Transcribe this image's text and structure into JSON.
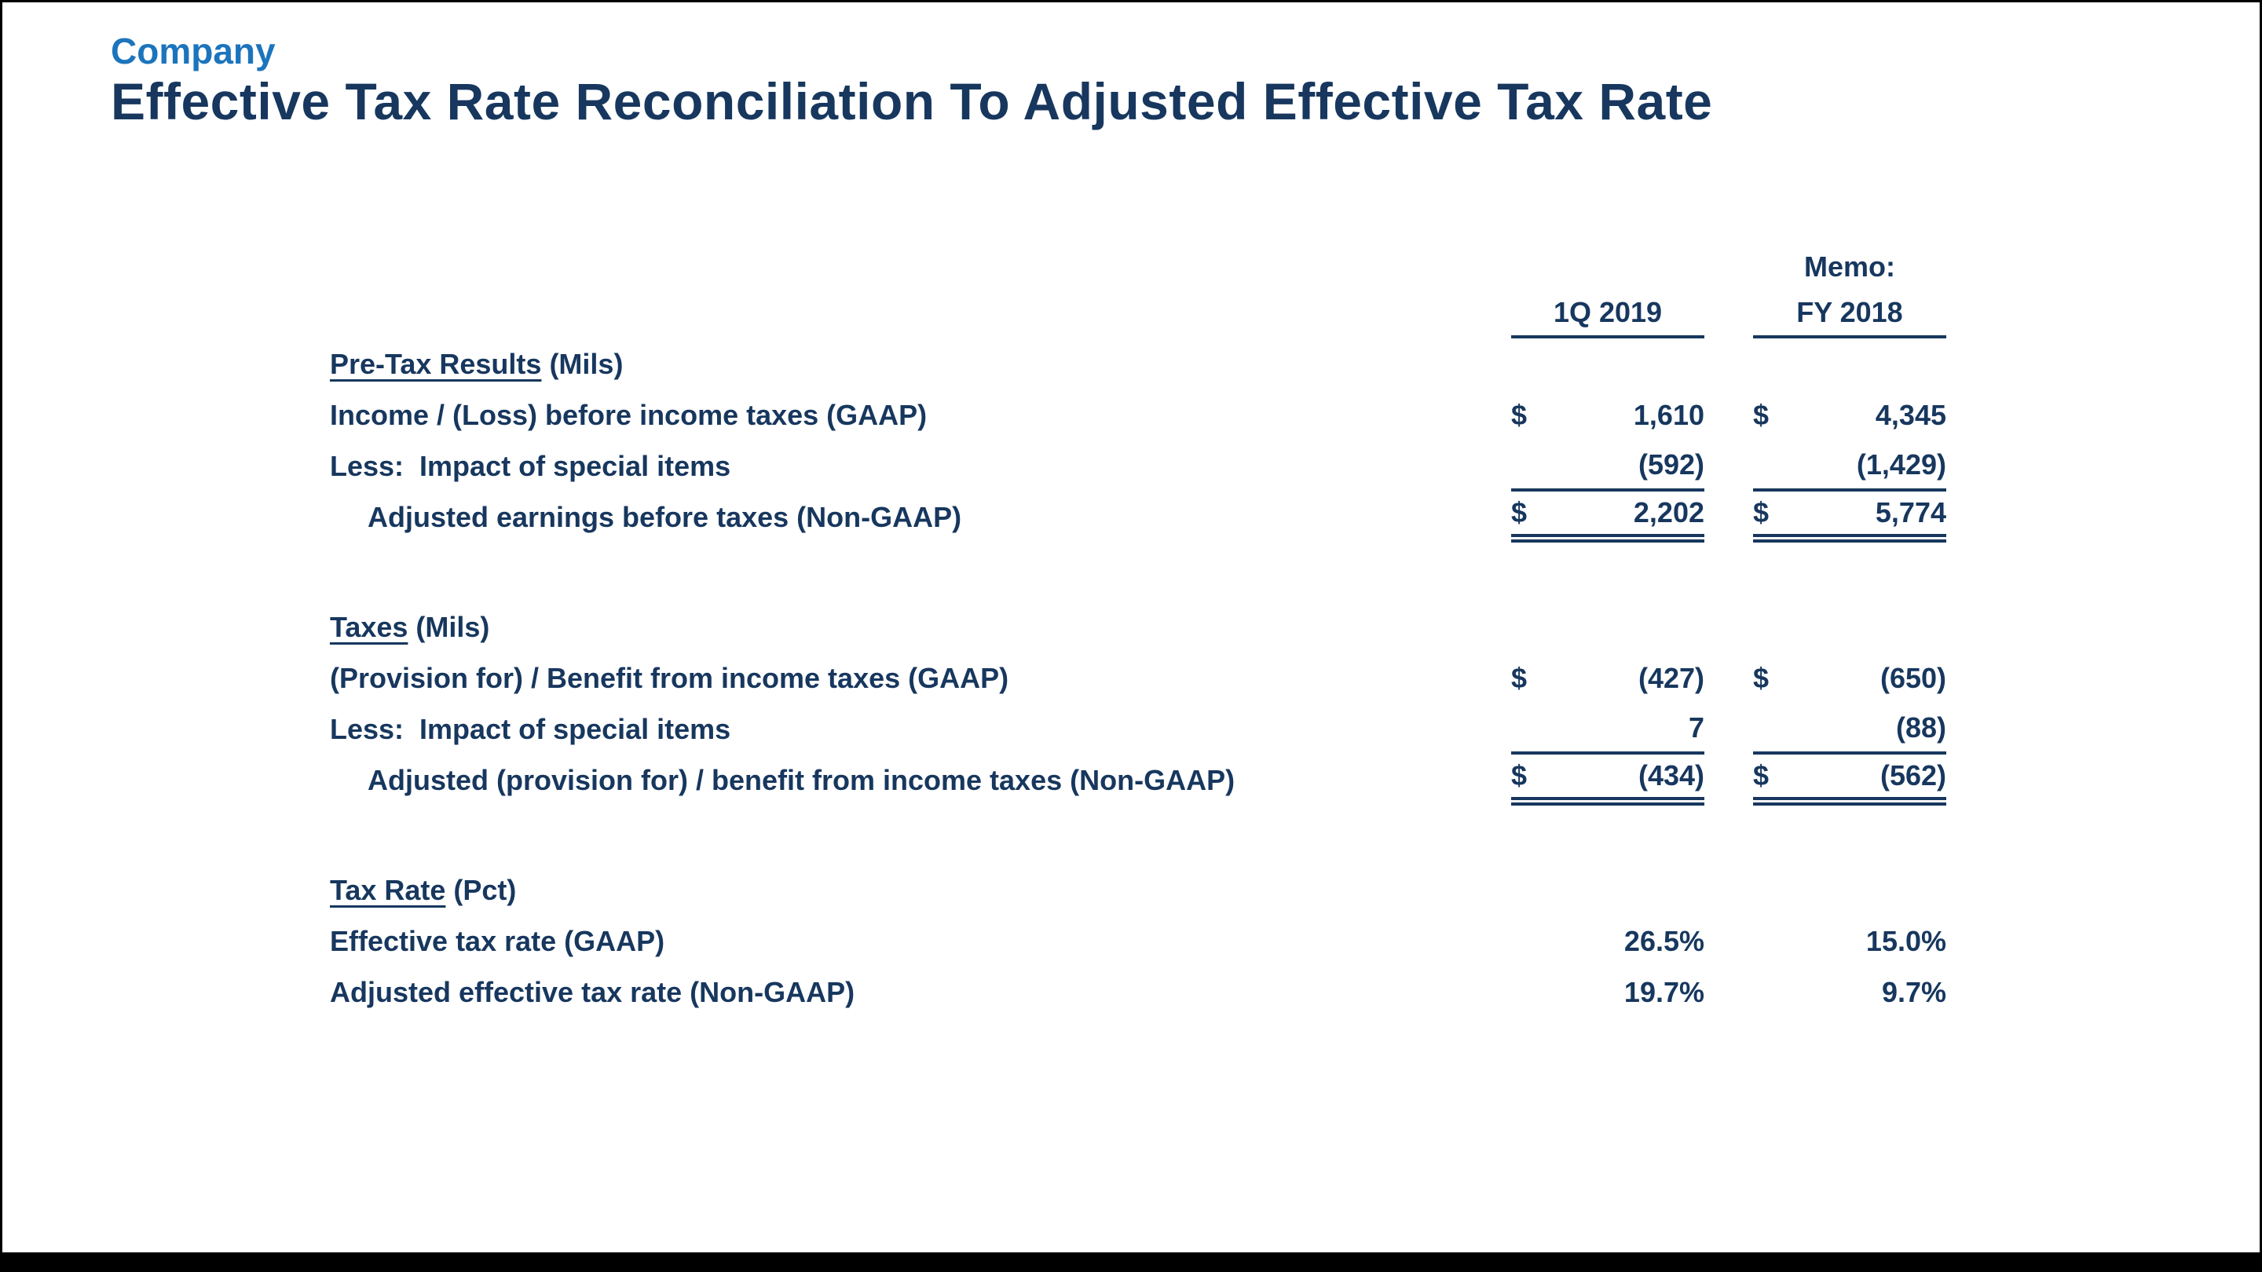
{
  "page": {
    "company": "Company",
    "title": "Effective Tax Rate Reconciliation To Adjusted Effective Tax Rate"
  },
  "colors": {
    "navy": "#17375E",
    "accent_blue": "#1C75BC",
    "bar_black": "#000000"
  },
  "table": {
    "memo": "Memo:",
    "col1": "1Q 2019",
    "col2": "FY 2018",
    "sections": [
      {
        "name": "Pre-Tax Results",
        "unit": " (Mils)",
        "rows": [
          {
            "label": "Income / (Loss) before income taxes (GAAP)",
            "cur1": "$",
            "v1": "1,610",
            "cur2": "$",
            "v2": "4,345"
          },
          {
            "label": "Less:  Impact of special items",
            "cur1": "",
            "v1": "(592)",
            "cur2": "",
            "v2": "(1,429)"
          },
          {
            "label": "Adjusted earnings before taxes (Non-GAAP)",
            "cur1": "$",
            "v1": "2,202",
            "cur2": "$",
            "v2": "5,774"
          }
        ]
      },
      {
        "name": "Taxes",
        "unit": " (Mils)",
        "rows": [
          {
            "label": "(Provision for) / Benefit from income taxes (GAAP)",
            "cur1": "$",
            "v1": "(427)",
            "cur2": "$",
            "v2": "(650)"
          },
          {
            "label": "Less:  Impact of special items",
            "cur1": "",
            "v1": "7",
            "cur2": "",
            "v2": "(88)"
          },
          {
            "label": "Adjusted (provision for) / benefit from income taxes (Non-GAAP)",
            "cur1": "$",
            "v1": "(434)",
            "cur2": "$",
            "v2": "(562)"
          }
        ]
      },
      {
        "name": "Tax Rate",
        "unit": " (Pct)",
        "rows": [
          {
            "label": "Effective tax rate (GAAP)",
            "cur1": "",
            "v1": "26.5%",
            "cur2": "",
            "v2": "15.0%"
          },
          {
            "label": "Adjusted effective tax rate (Non-GAAP)",
            "cur1": "",
            "v1": "19.7%",
            "cur2": "",
            "v2": "9.7%"
          }
        ]
      }
    ]
  }
}
